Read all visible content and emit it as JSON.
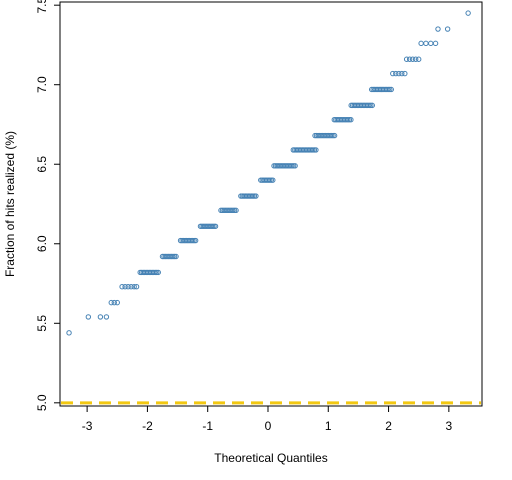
{
  "chart_data": {
    "type": "scatter",
    "title": "",
    "xlabel": "Theoretical Quantiles",
    "ylabel": "Fraction of hits realized (%)",
    "xlim": [
      -3.45,
      3.55
    ],
    "ylim": [
      4.98,
      7.52
    ],
    "x_ticks": [
      -3,
      -2,
      -1,
      0,
      1,
      2,
      3
    ],
    "y_ticks": [
      5.0,
      5.5,
      6.0,
      6.5,
      7.0,
      7.5
    ],
    "x_tick_labels": [
      "-3",
      "-2",
      "-1",
      "0",
      "1",
      "2",
      "3"
    ],
    "y_tick_labels": [
      "5.0",
      "5.5",
      "6.0",
      "6.5",
      "7.0",
      "7.5"
    ],
    "grid": false,
    "point_color": "#4682B4",
    "reference_line": {
      "y": 5.0,
      "color": "#F2C811",
      "style": "dashed"
    },
    "levels": [
      {
        "y": 5.44,
        "x": [
          -3.3
        ]
      },
      {
        "y": 5.54,
        "x": [
          -2.98,
          -2.78,
          -2.68
        ]
      },
      {
        "y": 5.63,
        "x": [
          -2.6,
          -2.55,
          -2.5
        ]
      },
      {
        "y": 5.73,
        "x": [
          -2.42,
          -2.37,
          -2.32,
          -2.27,
          -2.22,
          -2.18
        ]
      },
      {
        "y": 5.82,
        "x_range": [
          -2.12,
          -1.82
        ]
      },
      {
        "y": 5.92,
        "x_range": [
          -1.75,
          -1.52
        ]
      },
      {
        "y": 6.02,
        "x_range": [
          -1.45,
          -1.18
        ]
      },
      {
        "y": 6.11,
        "x_range": [
          -1.12,
          -0.85
        ]
      },
      {
        "y": 6.21,
        "x_range": [
          -0.78,
          -0.52
        ]
      },
      {
        "y": 6.3,
        "x_range": [
          -0.45,
          -0.2
        ]
      },
      {
        "y": 6.4,
        "x_range": [
          -0.12,
          0.08
        ]
      },
      {
        "y": 6.49,
        "x_range": [
          0.1,
          0.45
        ]
      },
      {
        "y": 6.59,
        "x_range": [
          0.42,
          0.8
        ]
      },
      {
        "y": 6.68,
        "x_range": [
          0.78,
          1.12
        ]
      },
      {
        "y": 6.78,
        "x_range": [
          1.1,
          1.38
        ]
      },
      {
        "y": 6.87,
        "x_range": [
          1.38,
          1.75
        ]
      },
      {
        "y": 6.97,
        "x_range": [
          1.72,
          2.05
        ]
      },
      {
        "y": 7.07,
        "x": [
          2.07,
          2.12,
          2.17,
          2.22,
          2.27
        ]
      },
      {
        "y": 7.16,
        "x": [
          2.3,
          2.35,
          2.4,
          2.45,
          2.5
        ]
      },
      {
        "y": 7.26,
        "x": [
          2.54,
          2.62,
          2.7,
          2.78
        ]
      },
      {
        "y": 7.35,
        "x": [
          2.82,
          2.98
        ]
      },
      {
        "y": 7.45,
        "x": [
          3.32
        ]
      }
    ]
  }
}
